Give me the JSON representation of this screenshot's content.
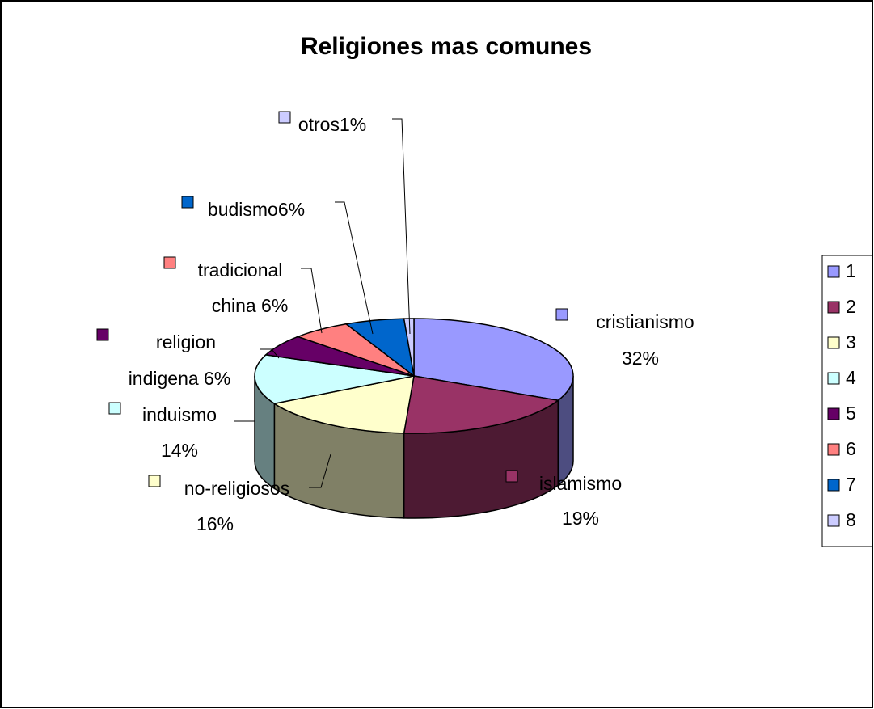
{
  "chart_data": {
    "type": "pie",
    "title": "Religiones mas comunes",
    "style": "3d-exploded-none",
    "slices": [
      {
        "key": "1",
        "name": "cristianismo",
        "value": 32,
        "pct_label": "32%",
        "color": "#9999FF"
      },
      {
        "key": "2",
        "name": "islamismo",
        "value": 19,
        "pct_label": "19%",
        "color": "#993366"
      },
      {
        "key": "3",
        "name": "no-religiosos",
        "value": 16,
        "pct_label": "16%",
        "color": "#FFFFCC"
      },
      {
        "key": "4",
        "name": "induismo",
        "value": 14,
        "pct_label": "14%",
        "color": "#CCFFFF"
      },
      {
        "key": "5",
        "name": "religion indigena",
        "value": 6,
        "pct_label": "6%",
        "color": "#660066"
      },
      {
        "key": "6",
        "name": "tradicional china",
        "value": 6,
        "pct_label": "6%",
        "color": "#FF8080"
      },
      {
        "key": "7",
        "name": "budismo",
        "value": 6,
        "pct_label": "6%",
        "color": "#0066CC"
      },
      {
        "key": "8",
        "name": "otros",
        "value": 1,
        "pct_label": "1%",
        "color": "#CCCCFF"
      }
    ],
    "data_labels": [
      {
        "lines": [
          "cristianismo",
          "32%"
        ]
      },
      {
        "lines": [
          "islamismo",
          "19%"
        ]
      },
      {
        "lines": [
          "no-religiosos",
          "16%"
        ]
      },
      {
        "lines": [
          "induismo",
          "14%"
        ]
      },
      {
        "lines": [
          "religion",
          "indigena 6%"
        ]
      },
      {
        "lines": [
          "tradicional",
          "china 6%"
        ]
      },
      {
        "lines": [
          "budismo6%"
        ]
      },
      {
        "lines": [
          "otros1%"
        ]
      }
    ],
    "legend": {
      "position": "right",
      "entries": [
        "1",
        "2",
        "3",
        "4",
        "5",
        "6",
        "7",
        "8"
      ]
    }
  }
}
